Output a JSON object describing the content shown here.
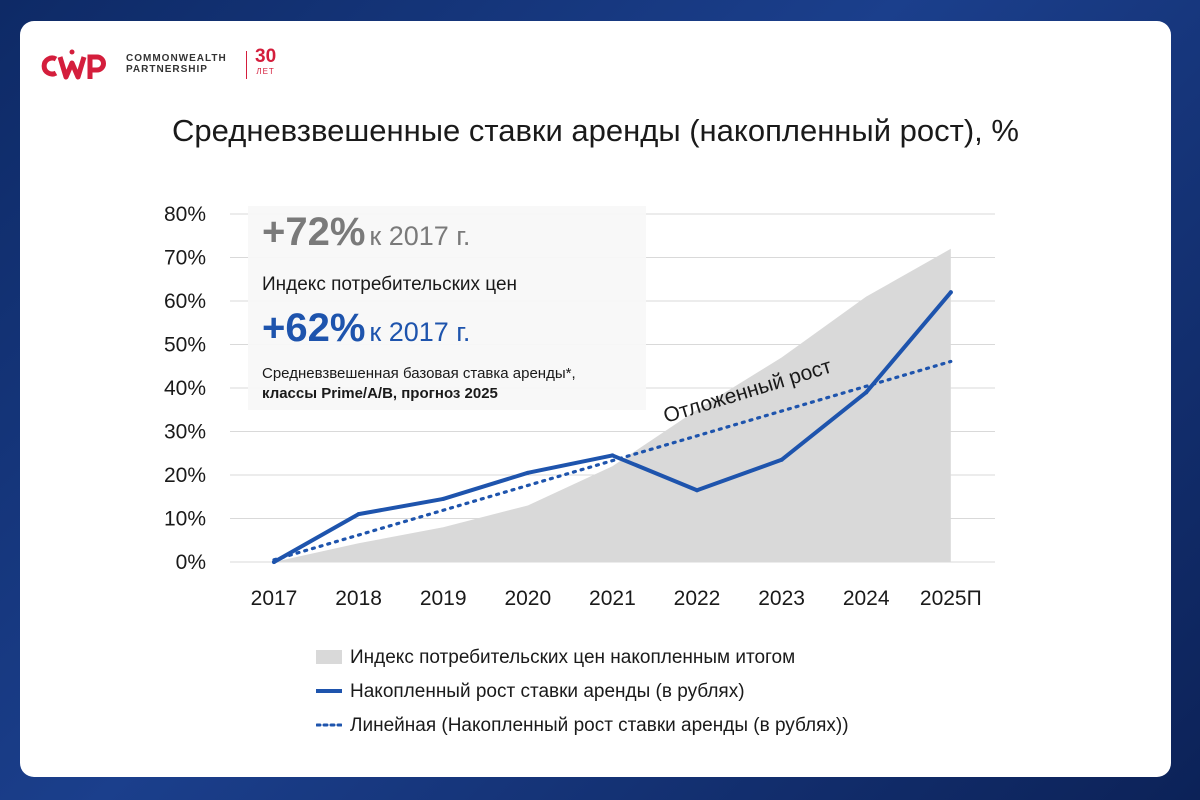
{
  "logo": {
    "mark": "CWP",
    "name_line1": "COMMONWEALTH",
    "name_line2": "PARTNERSHIP",
    "years_num": "30",
    "years_unit": "ЛЕТ"
  },
  "colors": {
    "cpi_area": "#d9d9d9",
    "rent_line": "#1e54ad",
    "trend_line": "#1e54ad",
    "brand_red": "#d41e3c",
    "callout_gray": "#7a7a7a"
  },
  "callout": {
    "cpi_value": "+72%",
    "cpi_suffix": "к 2017 г.",
    "cpi_desc": "Индекс потребительских цен",
    "rent_value": "+62%",
    "rent_suffix": "к 2017 г.",
    "rent_desc_line1": "Средневзвешенная базовая ставка аренды*,",
    "rent_desc_line2": "классы Prime/A/B, прогноз 2025"
  },
  "chart_data": {
    "type": "line",
    "title": "Средневзвешенные ставки аренды (накопленный рост), %",
    "categories": [
      "2017",
      "2018",
      "2019",
      "2020",
      "2021",
      "2022",
      "2023",
      "2024",
      "2025П"
    ],
    "ylim": [
      0,
      80
    ],
    "yticks": [
      0,
      10,
      20,
      30,
      40,
      50,
      60,
      70,
      80
    ],
    "ytick_labels": [
      "0%",
      "10%",
      "20%",
      "30%",
      "40%",
      "50%",
      "60%",
      "70%",
      "80%"
    ],
    "grid": true,
    "series": [
      {
        "name": "Индекс потребительских цен накопленным итогом",
        "kind": "area",
        "values": [
          0,
          4.3,
          8,
          13,
          22,
          35,
          47,
          61,
          72
        ]
      },
      {
        "name": "Накопленный рост ставки аренды (в рублях)",
        "kind": "line",
        "values": [
          0,
          11,
          14.5,
          20.5,
          24.5,
          16.5,
          23.5,
          39,
          62
        ]
      },
      {
        "name": "Линейная (Накопленный рост ставки аренды (в рублях))",
        "kind": "trend",
        "values": [
          0.5,
          6.2,
          11.9,
          17.6,
          23.3,
          29.0,
          34.7,
          40.4,
          46.1
        ]
      }
    ],
    "annotation": "Отложенный рост"
  }
}
